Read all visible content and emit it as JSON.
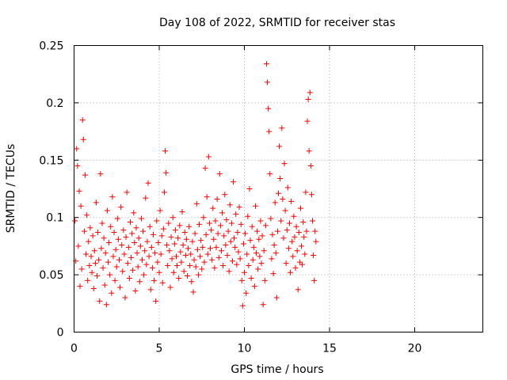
{
  "chart_data": {
    "type": "scatter",
    "title": "Day 108 of 2022, SRMTID for receiver stas",
    "xlabel": "GPS time / hours",
    "ylabel": "SRMTID / TECUs",
    "xlim": [
      0,
      24
    ],
    "ylim": [
      0,
      0.25
    ],
    "x_ticks": [
      0,
      5,
      10,
      15,
      20
    ],
    "x_tick_labels": [
      "0",
      "5",
      "10",
      "15",
      "20"
    ],
    "y_ticks": [
      0,
      0.05,
      0.1,
      0.15,
      0.2,
      0.25
    ],
    "y_tick_labels": [
      "0",
      "0.05",
      "0.1",
      "0.15",
      "0.2",
      "0.25"
    ],
    "grid": true,
    "marker": "plus",
    "color": "#ff0000",
    "series": [
      {
        "name": "SRMTID",
        "points": [
          [
            0.05,
            0.097
          ],
          [
            0.1,
            0.062
          ],
          [
            0.15,
            0.16
          ],
          [
            0.2,
            0.145
          ],
          [
            0.25,
            0.075
          ],
          [
            0.3,
            0.123
          ],
          [
            0.35,
            0.04
          ],
          [
            0.4,
            0.11
          ],
          [
            0.45,
            0.055
          ],
          [
            0.5,
            0.185
          ],
          [
            0.55,
            0.168
          ],
          [
            0.6,
            0.088
          ],
          [
            0.65,
            0.137
          ],
          [
            0.7,
            0.068
          ],
          [
            0.75,
            0.102
          ],
          [
            0.8,
            0.045
          ],
          [
            0.85,
            0.079
          ],
          [
            0.9,
            0.058
          ],
          [
            0.95,
            0.091
          ],
          [
            1.0,
            0.066
          ],
          [
            1.05,
            0.052
          ],
          [
            1.1,
            0.084
          ],
          [
            1.15,
            0.038
          ],
          [
            1.2,
            0.071
          ],
          [
            1.25,
            0.06
          ],
          [
            1.3,
            0.113
          ],
          [
            1.35,
            0.049
          ],
          [
            1.4,
            0.087
          ],
          [
            1.45,
            0.063
          ],
          [
            1.5,
            0.027
          ],
          [
            1.55,
            0.138
          ],
          [
            1.6,
            0.073
          ],
          [
            1.65,
            0.095
          ],
          [
            1.7,
            0.056
          ],
          [
            1.75,
            0.082
          ],
          [
            1.8,
            0.041
          ],
          [
            1.85,
            0.069
          ],
          [
            1.9,
            0.024
          ],
          [
            1.95,
            0.106
          ],
          [
            2.0,
            0.061
          ],
          [
            2.05,
            0.078
          ],
          [
            2.1,
            0.05
          ],
          [
            2.15,
            0.092
          ],
          [
            2.2,
            0.034
          ],
          [
            2.25,
            0.118
          ],
          [
            2.3,
            0.066
          ],
          [
            2.35,
            0.087
          ],
          [
            2.4,
            0.045
          ],
          [
            2.45,
            0.072
          ],
          [
            2.5,
            0.057
          ],
          [
            2.55,
            0.099
          ],
          [
            2.6,
            0.081
          ],
          [
            2.65,
            0.063
          ],
          [
            2.7,
            0.039
          ],
          [
            2.75,
            0.109
          ],
          [
            2.8,
            0.076
          ],
          [
            2.85,
            0.053
          ],
          [
            2.9,
            0.089
          ],
          [
            2.95,
            0.068
          ],
          [
            3.0,
            0.03
          ],
          [
            3.05,
            0.083
          ],
          [
            3.1,
            0.122
          ],
          [
            3.15,
            0.06
          ],
          [
            3.2,
            0.074
          ],
          [
            3.25,
            0.047
          ],
          [
            3.3,
            0.096
          ],
          [
            3.35,
            0.065
          ],
          [
            3.4,
            0.086
          ],
          [
            3.45,
            0.054
          ],
          [
            3.5,
            0.104
          ],
          [
            3.55,
            0.078
          ],
          [
            3.6,
            0.036
          ],
          [
            3.65,
            0.091
          ],
          [
            3.7,
            0.069
          ],
          [
            3.75,
            0.057
          ],
          [
            3.8,
            0.082
          ],
          [
            3.85,
            0.044
          ],
          [
            3.9,
            0.075
          ],
          [
            3.95,
            0.099
          ],
          [
            4.0,
            0.063
          ],
          [
            4.05,
            0.088
          ],
          [
            4.1,
            0.05
          ],
          [
            4.15,
            0.071
          ],
          [
            4.2,
            0.117
          ],
          [
            4.25,
            0.059
          ],
          [
            4.3,
            0.079
          ],
          [
            4.35,
            0.13
          ],
          [
            4.4,
            0.066
          ],
          [
            4.45,
            0.092
          ],
          [
            4.5,
            0.037
          ],
          [
            4.55,
            0.074
          ],
          [
            4.6,
            0.056
          ],
          [
            4.65,
            0.085
          ],
          [
            4.7,
            0.045
          ],
          [
            4.75,
            0.069
          ],
          [
            4.8,
            0.027
          ],
          [
            4.85,
            0.097
          ],
          [
            4.9,
            0.061
          ],
          [
            4.95,
            0.078
          ],
          [
            5.0,
            0.052
          ],
          [
            5.05,
            0.106
          ],
          [
            5.1,
            0.068
          ],
          [
            5.15,
            0.084
          ],
          [
            5.2,
            0.043
          ],
          [
            5.25,
            0.09
          ],
          [
            5.3,
            0.122
          ],
          [
            5.35,
            0.158
          ],
          [
            5.4,
            0.139
          ],
          [
            5.45,
            0.076
          ],
          [
            5.5,
            0.058
          ],
          [
            5.55,
            0.095
          ],
          [
            5.6,
            0.071
          ],
          [
            5.65,
            0.039
          ],
          [
            5.7,
            0.083
          ],
          [
            5.75,
            0.064
          ],
          [
            5.8,
            0.1
          ],
          [
            5.85,
            0.052
          ],
          [
            5.9,
            0.077
          ],
          [
            5.95,
            0.089
          ],
          [
            6.0,
            0.066
          ],
          [
            6.05,
            0.058
          ],
          [
            6.1,
            0.082
          ],
          [
            6.15,
            0.047
          ],
          [
            6.2,
            0.093
          ],
          [
            6.25,
            0.07
          ],
          [
            6.3,
            0.061
          ],
          [
            6.35,
            0.105
          ],
          [
            6.4,
            0.076
          ],
          [
            6.45,
            0.053
          ],
          [
            6.5,
            0.087
          ],
          [
            6.55,
            0.067
          ],
          [
            6.6,
            0.081
          ],
          [
            6.65,
            0.049
          ],
          [
            6.7,
            0.073
          ],
          [
            6.75,
            0.092
          ],
          [
            6.8,
            0.058
          ],
          [
            6.85,
            0.068
          ],
          [
            6.9,
            0.044
          ],
          [
            6.95,
            0.079
          ],
          [
            7.0,
            0.035
          ],
          [
            7.05,
            0.063
          ],
          [
            7.1,
            0.086
          ],
          [
            7.15,
            0.057
          ],
          [
            7.2,
            0.112
          ],
          [
            7.25,
            0.072
          ],
          [
            7.3,
            0.05
          ],
          [
            7.35,
            0.094
          ],
          [
            7.4,
            0.066
          ],
          [
            7.45,
            0.08
          ],
          [
            7.5,
            0.055
          ],
          [
            7.55,
            0.074
          ],
          [
            7.6,
            0.1
          ],
          [
            7.65,
            0.061
          ],
          [
            7.7,
            0.143
          ],
          [
            7.75,
            0.085
          ],
          [
            7.8,
            0.118
          ],
          [
            7.85,
            0.068
          ],
          [
            7.9,
            0.153
          ],
          [
            7.95,
            0.095
          ],
          [
            8.0,
            0.073
          ],
          [
            8.05,
            0.089
          ],
          [
            8.1,
            0.063
          ],
          [
            8.15,
            0.108
          ],
          [
            8.2,
            0.081
          ],
          [
            8.25,
            0.056
          ],
          [
            8.3,
            0.097
          ],
          [
            8.35,
            0.074
          ],
          [
            8.4,
            0.116
          ],
          [
            8.45,
            0.086
          ],
          [
            8.5,
            0.065
          ],
          [
            8.55,
            0.138
          ],
          [
            8.6,
            0.093
          ],
          [
            8.65,
            0.071
          ],
          [
            8.7,
            0.104
          ],
          [
            8.75,
            0.058
          ],
          [
            8.8,
            0.084
          ],
          [
            8.85,
            0.12
          ],
          [
            8.9,
            0.076
          ],
          [
            8.95,
            0.098
          ],
          [
            9.0,
            0.067
          ],
          [
            9.05,
            0.088
          ],
          [
            9.1,
            0.053
          ],
          [
            9.15,
            0.111
          ],
          [
            9.2,
            0.079
          ],
          [
            9.25,
            0.095
          ],
          [
            9.3,
            0.062
          ],
          [
            9.35,
            0.131
          ],
          [
            9.4,
            0.082
          ],
          [
            9.45,
            0.074
          ],
          [
            9.5,
            0.103
          ],
          [
            9.55,
            0.059
          ],
          [
            9.6,
            0.087
          ],
          [
            9.65,
            0.07
          ],
          [
            9.7,
            0.109
          ],
          [
            9.75,
            0.064
          ],
          [
            9.8,
            0.094
          ],
          [
            9.85,
            0.045
          ],
          [
            9.9,
            0.023
          ],
          [
            9.95,
            0.077
          ],
          [
            10.0,
            0.052
          ],
          [
            10.05,
            0.086
          ],
          [
            10.1,
            0.034
          ],
          [
            10.15,
            0.068
          ],
          [
            10.2,
            0.101
          ],
          [
            10.25,
            0.058
          ],
          [
            10.3,
            0.125
          ],
          [
            10.35,
            0.08
          ],
          [
            10.4,
            0.047
          ],
          [
            10.45,
            0.092
          ],
          [
            10.5,
            0.063
          ],
          [
            10.55,
            0.074
          ],
          [
            10.6,
            0.04
          ],
          [
            10.65,
            0.11
          ],
          [
            10.7,
            0.069
          ],
          [
            10.75,
            0.088
          ],
          [
            10.8,
            0.055
          ],
          [
            10.85,
            0.081
          ],
          [
            10.9,
            0.066
          ],
          [
            10.95,
            0.097
          ],
          [
            11.0,
            0.06
          ],
          [
            11.05,
            0.084
          ],
          [
            11.1,
            0.024
          ],
          [
            11.15,
            0.071
          ],
          [
            11.2,
            0.045
          ],
          [
            11.25,
            0.093
          ],
          [
            11.3,
            0.234
          ],
          [
            11.35,
            0.218
          ],
          [
            11.4,
            0.195
          ],
          [
            11.45,
            0.175
          ],
          [
            11.5,
            0.138
          ],
          [
            11.55,
            0.099
          ],
          [
            11.6,
            0.064
          ],
          [
            11.65,
            0.085
          ],
          [
            11.7,
            0.051
          ],
          [
            11.75,
            0.076
          ],
          [
            11.8,
            0.113
          ],
          [
            11.85,
            0.069
          ],
          [
            11.9,
            0.03
          ],
          [
            11.95,
            0.088
          ],
          [
            12.0,
            0.121
          ],
          [
            12.05,
            0.162
          ],
          [
            12.1,
            0.134
          ],
          [
            12.15,
            0.097
          ],
          [
            12.2,
            0.178
          ],
          [
            12.25,
            0.116
          ],
          [
            12.3,
            0.082
          ],
          [
            12.35,
            0.147
          ],
          [
            12.4,
            0.106
          ],
          [
            12.45,
            0.06
          ],
          [
            12.5,
            0.089
          ],
          [
            12.55,
            0.126
          ],
          [
            12.6,
            0.073
          ],
          [
            12.65,
            0.095
          ],
          [
            12.7,
            0.052
          ],
          [
            12.75,
            0.114
          ],
          [
            12.8,
            0.079
          ],
          [
            12.85,
            0.066
          ],
          [
            12.9,
            0.101
          ],
          [
            12.95,
            0.083
          ],
          [
            13.0,
            0.056
          ],
          [
            13.05,
            0.092
          ],
          [
            13.1,
            0.071
          ],
          [
            13.15,
            0.037
          ],
          [
            13.2,
            0.087
          ],
          [
            13.25,
            0.061
          ],
          [
            13.3,
            0.108
          ],
          [
            13.35,
            0.075
          ],
          [
            13.4,
            0.059
          ],
          [
            13.45,
            0.096
          ],
          [
            13.5,
            0.083
          ],
          [
            13.55,
            0.068
          ],
          [
            13.6,
            0.122
          ],
          [
            13.65,
            0.088
          ],
          [
            13.7,
            0.184
          ],
          [
            13.75,
            0.203
          ],
          [
            13.8,
            0.158
          ],
          [
            13.85,
            0.209
          ],
          [
            13.9,
            0.145
          ],
          [
            13.95,
            0.12
          ],
          [
            14.0,
            0.097
          ],
          [
            14.05,
            0.067
          ],
          [
            14.1,
            0.045
          ],
          [
            14.15,
            0.088
          ],
          [
            14.2,
            0.079
          ]
        ]
      }
    ]
  }
}
